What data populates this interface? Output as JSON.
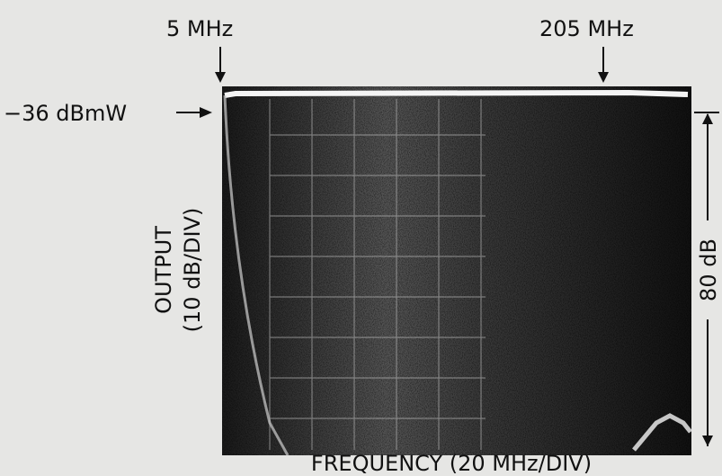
{
  "figure": {
    "start_marker": "5 MHz",
    "stop_marker": "205 MHz",
    "reference_level": "−36 dBmW",
    "y_axis_label": [
      "OUTPUT",
      "(10 dB/DIV)"
    ],
    "range_label": "80 dB",
    "x_axis_label": "FREQUENCY (20 MHz/DIV)"
  }
}
